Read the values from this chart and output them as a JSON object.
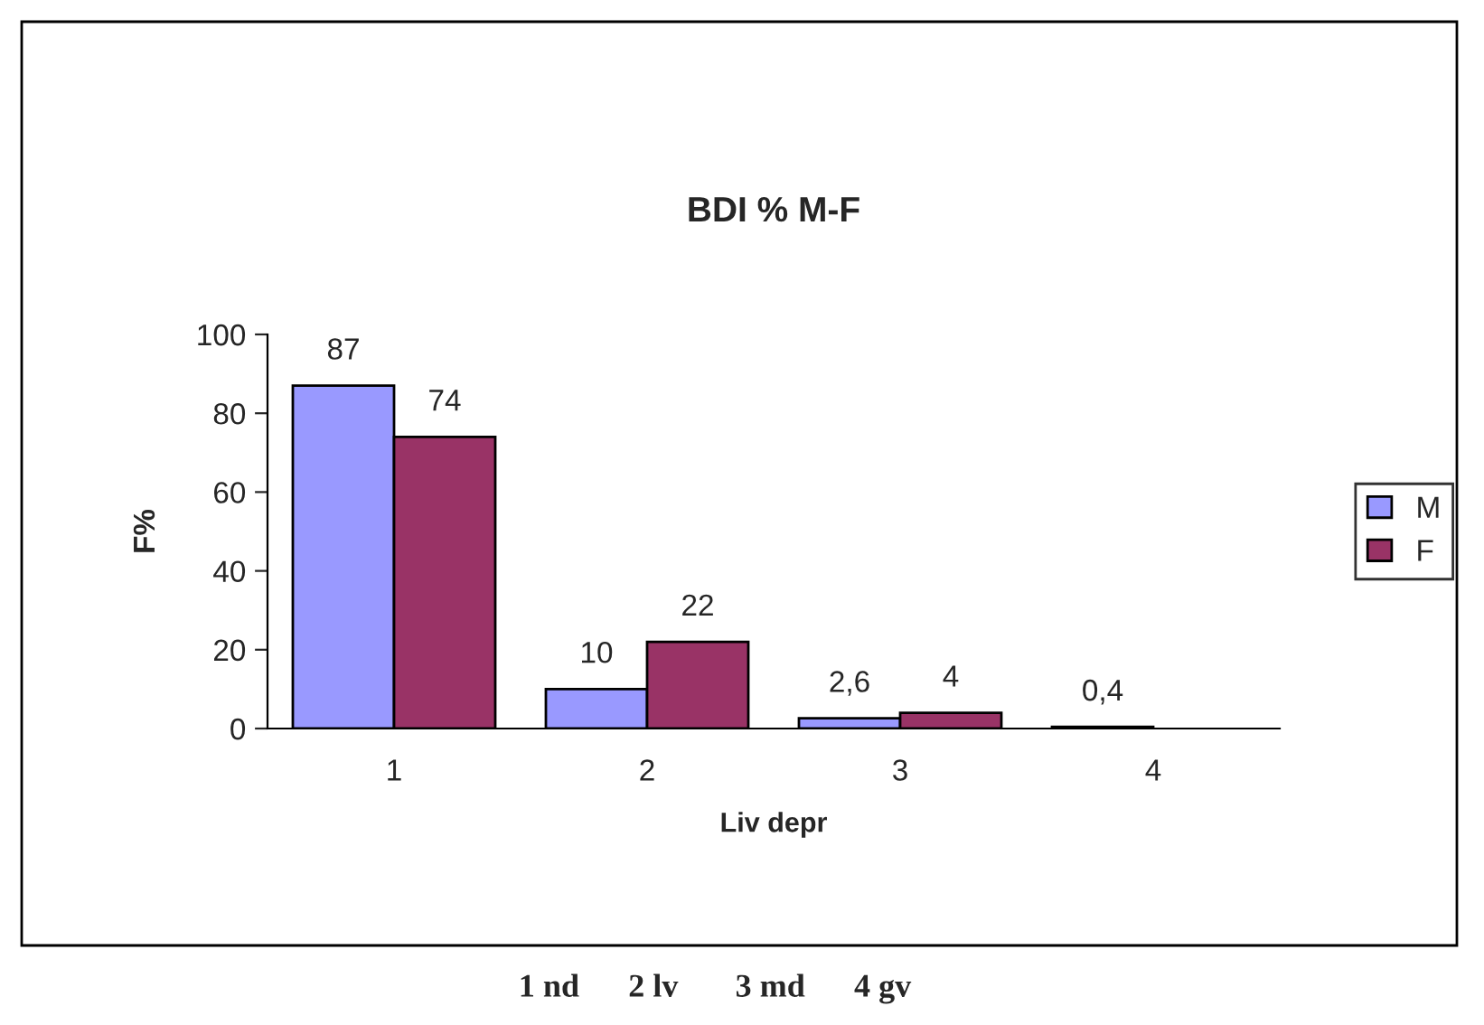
{
  "chart_data": {
    "type": "bar",
    "title": "BDI % M-F",
    "xlabel": "Liv depr",
    "ylabel": "F%",
    "categories": [
      "1",
      "2",
      "3",
      "4"
    ],
    "series": [
      {
        "name": "M",
        "color": "#9999ff",
        "values": [
          87,
          10,
          2.6,
          0.4
        ],
        "value_labels": [
          "87",
          "10",
          "2,6",
          "0,4"
        ]
      },
      {
        "name": "F",
        "color": "#993366",
        "values": [
          74,
          22,
          4,
          null
        ],
        "value_labels": [
          "74",
          "22",
          "4",
          null
        ]
      }
    ],
    "ylim": [
      0,
      100
    ],
    "yticks": [
      0,
      20,
      40,
      60,
      80,
      100
    ],
    "grid": false,
    "legend": "right",
    "annotations": [
      "1 nd      2 lv       3 md      4 gv"
    ]
  }
}
